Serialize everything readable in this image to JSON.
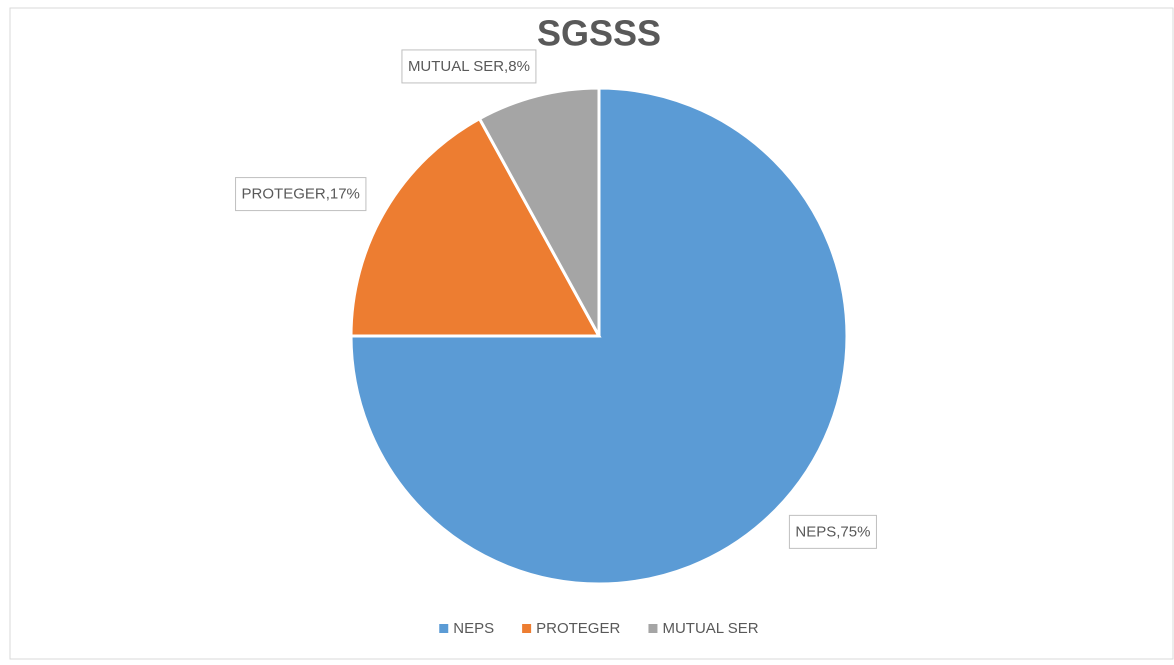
{
  "chart_data": {
    "type": "pie",
    "title": "SGSSS",
    "categories": [
      "NEPS",
      "PROTEGER",
      "MUTUAL SER"
    ],
    "values": [
      75,
      17,
      8
    ],
    "value_labels": [
      "NEPS,75%",
      "PROTEGER,17%",
      "MUTUAL SER,8%"
    ],
    "colors": [
      "#5b9bd5",
      "#ed7d31",
      "#a5a5a5"
    ]
  }
}
